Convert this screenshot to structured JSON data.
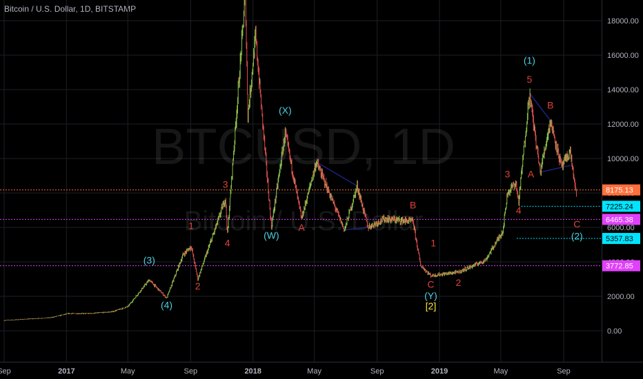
{
  "header": {
    "title": "Bitcoin / U.S. Dollar, 1D, BITSTAMP"
  },
  "watermark": {
    "symbol": "BTCUSD, 1D",
    "name": "Bitcoin / U.S. Dollar"
  },
  "colors": {
    "background": "#000000",
    "grid": "#1c1f26",
    "text": "#b2b5be",
    "candle_up": "#8bc34a",
    "candle_down": "#e05050",
    "wave_red": "#e0413a",
    "wave_cyan": "#4dd0e1",
    "wave_yellow": "#ffeb3b",
    "trend_blue": "#1a237e",
    "orange": "#ff6f3c",
    "magenta": "#e040fb",
    "cyan": "#00e5ff"
  },
  "chart_data": {
    "type": "candlestick",
    "symbol": "BTCUSD",
    "exchange": "BITSTAMP",
    "interval": "1D",
    "x_ticks": [
      "Sep",
      "2017",
      "May",
      "Sep",
      "2018",
      "May",
      "Sep",
      "2019",
      "May",
      "Sep"
    ],
    "y_ticks": [
      "0.00",
      "2000.00",
      "4000.00",
      "6000.00",
      "8000.00",
      "10000.00",
      "12000.00",
      "14000.00",
      "16000.00",
      "18000.00"
    ],
    "ylim": [
      -500,
      19200
    ],
    "price_path": [
      [
        "2016-09-01",
        600
      ],
      [
        "2016-12-01",
        760
      ],
      [
        "2017-01-05",
        1000
      ],
      [
        "2017-02-15",
        1000
      ],
      [
        "2017-03-31",
        1100
      ],
      [
        "2017-05-01",
        1400
      ],
      [
        "2017-05-25",
        2300
      ],
      [
        "2017-06-12",
        2950
      ],
      [
        "2017-07-16",
        1900
      ],
      [
        "2017-08-17",
        4400
      ],
      [
        "2017-09-02",
        4900
      ],
      [
        "2017-09-15",
        3000
      ],
      [
        "2017-10-20",
        6000
      ],
      [
        "2017-11-08",
        7700
      ],
      [
        "2017-11-12",
        5600
      ],
      [
        "2017-12-07",
        15500
      ],
      [
        "2017-12-17",
        19600
      ],
      [
        "2017-12-22",
        12500
      ],
      [
        "2018-01-06",
        17100
      ],
      [
        "2018-02-06",
        6000
      ],
      [
        "2018-03-05",
        11500
      ],
      [
        "2018-04-06",
        6500
      ],
      [
        "2018-05-05",
        9800
      ],
      [
        "2018-06-29",
        5850
      ],
      [
        "2018-07-24",
        8400
      ],
      [
        "2018-08-14",
        6000
      ],
      [
        "2018-09-15",
        6500
      ],
      [
        "2018-11-10",
        6350
      ],
      [
        "2018-11-25",
        3800
      ],
      [
        "2018-12-15",
        3200
      ],
      [
        "2019-02-07",
        3400
      ],
      [
        "2019-04-01",
        4100
      ],
      [
        "2019-05-05",
        5800
      ],
      [
        "2019-05-14",
        8000
      ],
      [
        "2019-05-30",
        8600
      ],
      [
        "2019-06-05",
        7500
      ],
      [
        "2019-06-26",
        13800
      ],
      [
        "2019-07-17",
        9200
      ],
      [
        "2019-08-06",
        12200
      ],
      [
        "2019-08-28",
        9500
      ],
      [
        "2019-09-14",
        10400
      ],
      [
        "2019-09-26",
        7750
      ]
    ],
    "price_levels": [
      {
        "label": "8175.13",
        "value": 8175.13,
        "color": "#ff6f3c"
      },
      {
        "label": "7225.24",
        "value": 7225.24,
        "color": "#00e5ff"
      },
      {
        "label": "6465.38",
        "value": 6465.38,
        "color": "#e040fb"
      },
      {
        "label": "5357.83",
        "value": 5357.83,
        "color": "#00e5ff"
      },
      {
        "label": "3772.85",
        "value": 3772.85,
        "color": "#e040fb"
      }
    ],
    "wave_labels": [
      {
        "text": "(3)",
        "date": "2017-06-12",
        "price": 3900,
        "color": "#4dd0e1"
      },
      {
        "text": "(4)",
        "date": "2017-07-16",
        "price": 1300,
        "color": "#4dd0e1"
      },
      {
        "text": "1",
        "date": "2017-09-02",
        "price": 5900,
        "color": "#e0413a"
      },
      {
        "text": "2",
        "date": "2017-09-15",
        "price": 2400,
        "color": "#e0413a"
      },
      {
        "text": "3",
        "date": "2017-11-08",
        "price": 8300,
        "color": "#e0413a"
      },
      {
        "text": "4",
        "date": "2017-11-12",
        "price": 4900,
        "color": "#e0413a"
      },
      {
        "text": "(X)",
        "date": "2018-03-05",
        "price": 12600,
        "color": "#4dd0e1"
      },
      {
        "text": "(W)",
        "date": "2018-02-06",
        "price": 5350,
        "color": "#4dd0e1"
      },
      {
        "text": "A",
        "date": "2018-04-06",
        "price": 5800,
        "color": "#e0413a"
      },
      {
        "text": "B",
        "date": "2018-11-10",
        "price": 7100,
        "color": "#e0413a"
      },
      {
        "text": "1",
        "date": "2018-12-20",
        "price": 4900,
        "color": "#e0413a"
      },
      {
        "text": "C",
        "date": "2018-12-15",
        "price": 2500,
        "color": "#e0413a"
      },
      {
        "text": "2",
        "date": "2019-02-07",
        "price": 2600,
        "color": "#e0413a"
      },
      {
        "text": "(Y)",
        "date": "2018-12-15",
        "price": 1850,
        "color": "#4dd0e1"
      },
      {
        "text": "[2]",
        "date": "2018-12-15",
        "price": 1250,
        "color": "#ffeb3b"
      },
      {
        "text": "3",
        "date": "2019-05-14",
        "price": 8900,
        "color": "#e0413a"
      },
      {
        "text": "4",
        "date": "2019-06-05",
        "price": 6800,
        "color": "#e0413a"
      },
      {
        "text": "(1)",
        "date": "2019-06-26",
        "price": 15500,
        "color": "#4dd0e1"
      },
      {
        "text": "5",
        "date": "2019-06-26",
        "price": 14400,
        "color": "#e0413a"
      },
      {
        "text": "A",
        "date": "2019-06-29",
        "price": 8900,
        "color": "#e0413a"
      },
      {
        "text": "B",
        "date": "2019-08-06",
        "price": 12900,
        "color": "#e0413a"
      },
      {
        "text": "C",
        "date": "2019-09-27",
        "price": 6000,
        "color": "#e0413a"
      },
      {
        "text": "(2)",
        "date": "2019-09-27",
        "price": 5300,
        "color": "#4dd0e1"
      }
    ],
    "trend_lines": [
      [
        [
          "2018-05-05",
          9800
        ],
        [
          "2018-07-24",
          8400
        ]
      ],
      [
        [
          "2018-06-29",
          5850
        ],
        [
          "2018-08-14",
          6000
        ]
      ],
      [
        [
          "2019-06-26",
          13800
        ],
        [
          "2019-08-06",
          12200
        ]
      ],
      [
        [
          "2019-07-17",
          9200
        ],
        [
          "2019-09-14",
          9600
        ]
      ],
      [
        [
          "2018-02-06",
          6000
        ],
        [
          "2018-03-05",
          11500
        ]
      ]
    ]
  }
}
